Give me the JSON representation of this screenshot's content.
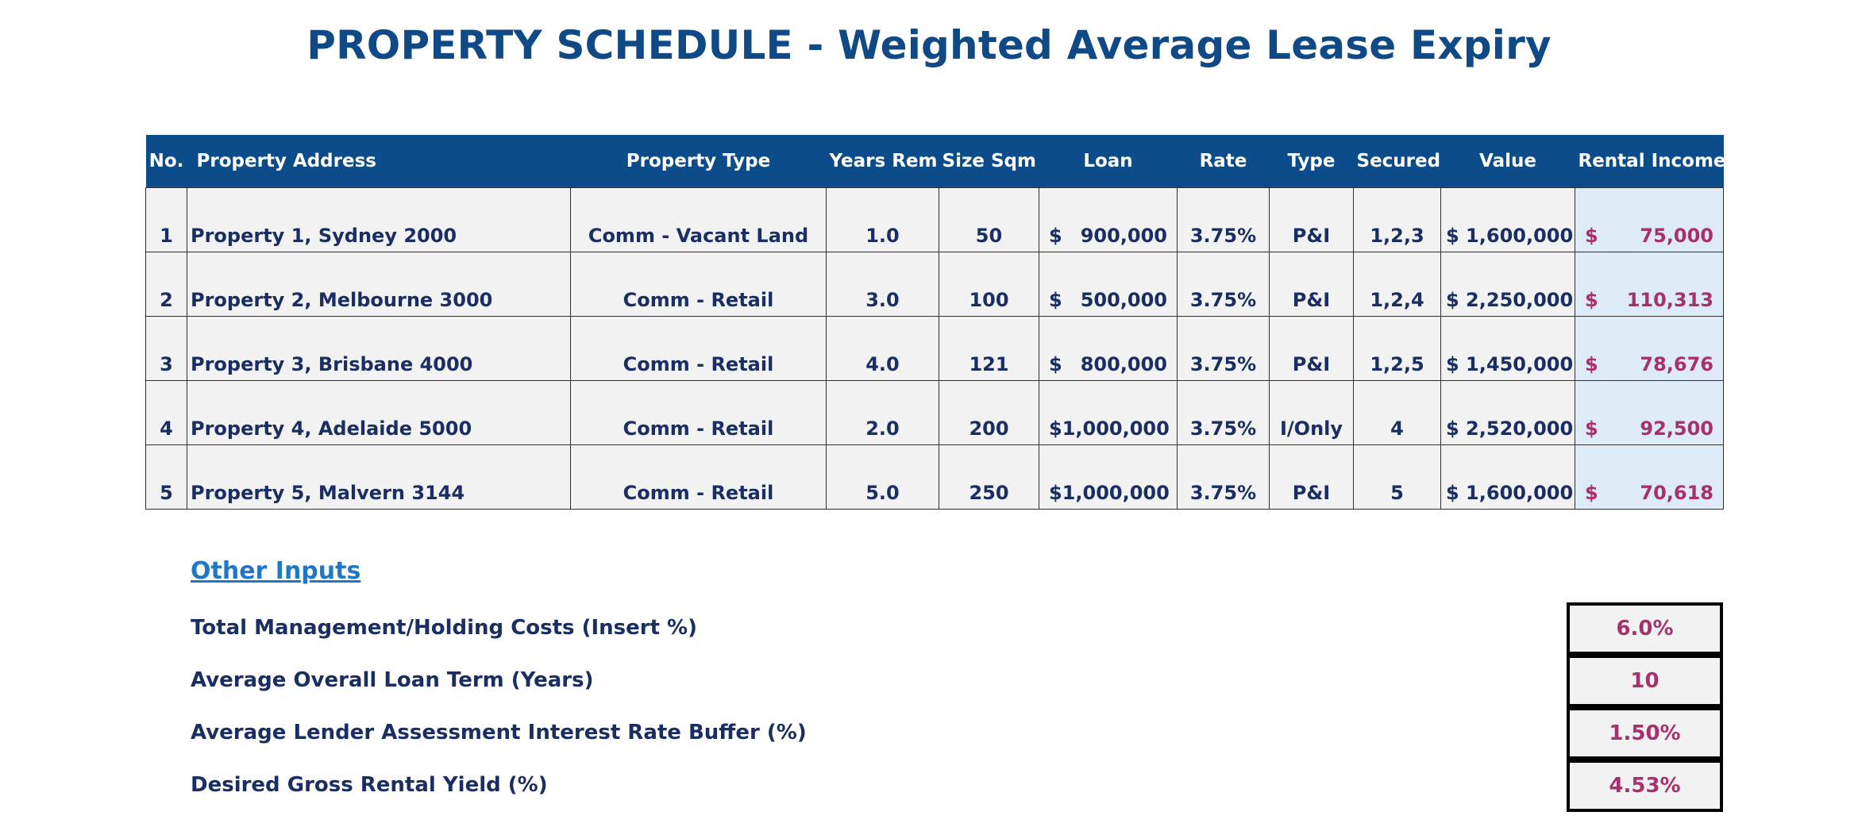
{
  "title": "PROPERTY SCHEDULE - Weighted Average Lease Expiry",
  "table": {
    "headers": [
      "No.",
      "Property Address",
      "Property Type",
      "Years Rem",
      "Size Sqm",
      "Loan",
      "Rate",
      "Type",
      "Secured",
      "Value",
      "Rental Income"
    ],
    "rows": [
      {
        "no": "1",
        "address": "Property 1, Sydney 2000",
        "ptype": "Comm - Vacant Land",
        "years": "1.0",
        "size": "50",
        "loan_cur": "$",
        "loan": "900,000",
        "rate": "3.75%",
        "type": "P&I",
        "secured": "1,2,3",
        "value": "$ 1,600,000",
        "income_cur": "$",
        "income": "75,000"
      },
      {
        "no": "2",
        "address": "Property 2, Melbourne 3000",
        "ptype": "Comm - Retail",
        "years": "3.0",
        "size": "100",
        "loan_cur": "$",
        "loan": "500,000",
        "rate": "3.75%",
        "type": "P&I",
        "secured": "1,2,4",
        "value": "$ 2,250,000",
        "income_cur": "$",
        "income": "110,313"
      },
      {
        "no": "3",
        "address": "Property 3, Brisbane 4000",
        "ptype": "Comm - Retail",
        "years": "4.0",
        "size": "121",
        "loan_cur": "$",
        "loan": "800,000",
        "rate": "3.75%",
        "type": "P&I",
        "secured": "1,2,5",
        "value": "$ 1,450,000",
        "income_cur": "$",
        "income": "78,676"
      },
      {
        "no": "4",
        "address": "Property 4, Adelaide 5000",
        "ptype": "Comm - Retail",
        "years": "2.0",
        "size": "200",
        "loan_cur": "$",
        "loan": "1,000,000",
        "rate": "3.75%",
        "type": "I/Only",
        "secured": "4",
        "value": "$ 2,520,000",
        "income_cur": "$",
        "income": "92,500"
      },
      {
        "no": "5",
        "address": "Property 5, Malvern 3144",
        "ptype": "Comm - Retail",
        "years": "5.0",
        "size": "250",
        "loan_cur": "$",
        "loan": "1,000,000",
        "rate": "3.75%",
        "type": "P&I",
        "secured": "5",
        "value": "$ 1,600,000",
        "income_cur": "$",
        "income": "70,618"
      }
    ]
  },
  "other_inputs": {
    "title": "Other Inputs",
    "items": [
      {
        "label": "Total Management/Holding Costs (Insert %)",
        "value": "6.0%"
      },
      {
        "label": "Average Overall Loan Term (Years)",
        "value": "10"
      },
      {
        "label": "Average Lender Assessment Interest Rate Buffer (%)",
        "value": "1.50%"
      },
      {
        "label": "Desired Gross Rental Yield (%)",
        "value": "4.53%"
      }
    ]
  },
  "colors": {
    "header_bg": "#0c4c8a",
    "title": "#0f4a86",
    "text": "#1a2e63",
    "income_text": "#a8306d",
    "income_bg": "#ddebf7",
    "link": "#1f77c8"
  }
}
